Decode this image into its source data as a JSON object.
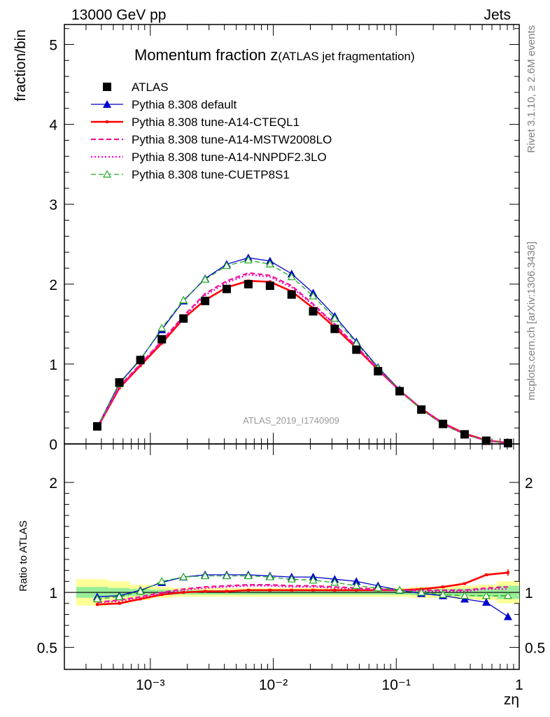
{
  "header": {
    "left": "13000 GeV pp",
    "right": "Jets"
  },
  "side": {
    "rivet": "Rivet 3.1.10, ≥ 2.6M events",
    "mcplots": "mcplots.cern.ch [arXiv:1306.3436]"
  },
  "chart_data": [
    {
      "type": "line",
      "title_main": "Momentum fraction z",
      "title_sub": "(ATLAS jet fragmentation)",
      "ylabel": "fraction/bin",
      "watermark": "ATLAS_2019_I1740909",
      "x_scale": "log",
      "xlim": [
        0.0002,
        1
      ],
      "ylim": [
        0,
        5.25
      ],
      "y_ticks": [
        "0",
        "1",
        "2",
        "3",
        "4",
        "5"
      ],
      "legend_position": "top-left",
      "x": [
        0.00037,
        0.00056,
        0.00083,
        0.00124,
        0.00186,
        0.00279,
        0.00418,
        0.00627,
        0.0094,
        0.0141,
        0.0211,
        0.0316,
        0.0474,
        0.0711,
        0.1065,
        0.16,
        0.24,
        0.36,
        0.54,
        0.81
      ],
      "series": [
        {
          "name": "ATLAS",
          "color": "#000000",
          "style": "data",
          "values": [
            0.22,
            0.77,
            1.05,
            1.31,
            1.57,
            1.79,
            1.94,
            2.0,
            1.98,
            1.87,
            1.66,
            1.44,
            1.18,
            0.91,
            0.66,
            0.43,
            0.25,
            0.12,
            0.04,
            0.01
          ]
        },
        {
          "name": "Pythia 8.308 default",
          "color": "#0000cc",
          "style": "solid-triangle",
          "values": [
            0.21,
            0.76,
            1.06,
            1.43,
            1.79,
            2.07,
            2.25,
            2.33,
            2.29,
            2.13,
            1.89,
            1.6,
            1.28,
            0.96,
            0.68,
            0.43,
            0.25,
            0.12,
            0.04,
            0.01
          ]
        },
        {
          "name": "Pythia 8.308 tune-A14-CTEQL1",
          "color": "#ff0000",
          "style": "solid-thick",
          "values": [
            0.2,
            0.7,
            0.98,
            1.26,
            1.57,
            1.8,
            1.96,
            2.04,
            2.03,
            1.91,
            1.7,
            1.46,
            1.2,
            0.93,
            0.67,
            0.44,
            0.26,
            0.13,
            0.045,
            0.012
          ]
        },
        {
          "name": "Pythia 8.308 tune-A14-MSTW2008LO",
          "color": "#ee1493",
          "style": "dashed",
          "values": [
            0.2,
            0.72,
            1.0,
            1.29,
            1.6,
            1.88,
            2.04,
            2.14,
            2.11,
            1.98,
            1.75,
            1.5,
            1.22,
            0.94,
            0.67,
            0.44,
            0.26,
            0.12,
            0.042,
            0.011
          ]
        },
        {
          "name": "Pythia 8.308 tune-A14-NNPDF2.3LO",
          "color": "#ff00cc",
          "style": "dotted",
          "values": [
            0.2,
            0.71,
            0.99,
            1.28,
            1.59,
            1.86,
            2.02,
            2.12,
            2.09,
            1.96,
            1.74,
            1.49,
            1.21,
            0.93,
            0.67,
            0.44,
            0.25,
            0.12,
            0.041,
            0.011
          ]
        },
        {
          "name": "Pythia 8.308 tune-CUETP8S1",
          "color": "#22aa22",
          "style": "dashed-open-triangle",
          "values": [
            0.21,
            0.75,
            1.05,
            1.45,
            1.8,
            2.06,
            2.23,
            2.3,
            2.25,
            2.09,
            1.85,
            1.57,
            1.26,
            0.95,
            0.67,
            0.43,
            0.24,
            0.12,
            0.04,
            0.01
          ]
        }
      ]
    },
    {
      "type": "line",
      "ylabel": "Ratio to ATLAS",
      "xlabel": "zη",
      "x_scale": "log",
      "xlim": [
        0.0002,
        1
      ],
      "ylim": [
        0.3,
        2.35
      ],
      "y_ticks": [
        "0.5",
        "1",
        "2"
      ],
      "x_ticks": [
        "10⁻³",
        "10⁻²",
        "10⁻¹",
        "1"
      ],
      "x": [
        0.00037,
        0.00056,
        0.00083,
        0.00124,
        0.00186,
        0.00279,
        0.00418,
        0.00627,
        0.0094,
        0.0141,
        0.0211,
        0.0316,
        0.0474,
        0.0711,
        0.1065,
        0.16,
        0.24,
        0.36,
        0.54,
        0.81
      ],
      "band_outer": [
        0.12,
        0.1,
        0.07,
        0.05,
        0.04,
        0.04,
        0.04,
        0.04,
        0.04,
        0.04,
        0.04,
        0.04,
        0.04,
        0.04,
        0.04,
        0.05,
        0.05,
        0.06,
        0.07,
        0.1
      ],
      "band_inner": [
        0.05,
        0.04,
        0.03,
        0.025,
        0.02,
        0.02,
        0.02,
        0.02,
        0.02,
        0.02,
        0.02,
        0.02,
        0.02,
        0.02,
        0.02,
        0.025,
        0.03,
        0.035,
        0.04,
        0.06
      ],
      "series": [
        {
          "name": "Pythia 8.308 default",
          "color": "#0000cc",
          "style": "solid-triangle",
          "values": [
            0.96,
            0.97,
            1.02,
            1.09,
            1.14,
            1.16,
            1.16,
            1.16,
            1.15,
            1.14,
            1.14,
            1.12,
            1.1,
            1.06,
            1.02,
            0.99,
            0.97,
            0.94,
            0.91,
            0.78
          ]
        },
        {
          "name": "Pythia 8.308 tune-A14-CTEQL1",
          "color": "#ff0000",
          "style": "solid-thick",
          "values": [
            0.89,
            0.9,
            0.94,
            0.98,
            1.0,
            1.01,
            1.01,
            1.02,
            1.02,
            1.02,
            1.02,
            1.02,
            1.02,
            1.02,
            1.02,
            1.03,
            1.05,
            1.08,
            1.16,
            1.18
          ]
        },
        {
          "name": "Pythia 8.308 tune-A14-MSTW2008LO",
          "color": "#ee1493",
          "style": "dashed",
          "values": [
            0.91,
            0.93,
            0.96,
            1.0,
            1.03,
            1.05,
            1.06,
            1.07,
            1.07,
            1.06,
            1.06,
            1.05,
            1.04,
            1.03,
            1.02,
            1.02,
            1.02,
            1.02,
            1.04,
            1.05
          ]
        },
        {
          "name": "Pythia 8.308 tune-A14-NNPDF2.3LO",
          "color": "#ff00cc",
          "style": "dotted",
          "values": [
            0.91,
            0.92,
            0.95,
            0.99,
            1.02,
            1.04,
            1.05,
            1.06,
            1.06,
            1.05,
            1.05,
            1.04,
            1.03,
            1.02,
            1.02,
            1.01,
            1.01,
            1.01,
            1.03,
            1.03
          ]
        },
        {
          "name": "Pythia 8.308 tune-CUETP8S1",
          "color": "#22aa22",
          "style": "dashed-open-triangle",
          "values": [
            0.94,
            0.96,
            1.01,
            1.1,
            1.14,
            1.15,
            1.15,
            1.15,
            1.14,
            1.12,
            1.11,
            1.09,
            1.06,
            1.04,
            1.02,
            1.0,
            0.98,
            0.97,
            0.97,
            0.97
          ]
        }
      ]
    }
  ]
}
